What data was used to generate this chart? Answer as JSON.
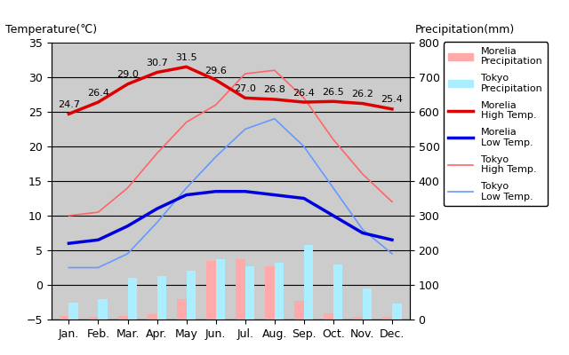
{
  "months": [
    "Jan.",
    "Feb.",
    "Mar.",
    "Apr.",
    "May",
    "Jun.",
    "Jul.",
    "Aug.",
    "Sep.",
    "Oct.",
    "Nov.",
    "Dec."
  ],
  "morelia_high": [
    24.7,
    26.4,
    29.0,
    30.7,
    31.5,
    29.6,
    27.0,
    26.8,
    26.4,
    26.5,
    26.2,
    25.4
  ],
  "morelia_low": [
    6.0,
    6.5,
    8.5,
    11.0,
    13.0,
    13.5,
    13.5,
    13.0,
    12.5,
    10.0,
    7.5,
    6.5
  ],
  "tokyo_high": [
    10.0,
    10.5,
    14.0,
    19.0,
    23.5,
    26.0,
    30.5,
    31.0,
    27.0,
    21.0,
    16.0,
    12.0
  ],
  "tokyo_low": [
    2.5,
    2.5,
    4.5,
    9.0,
    14.0,
    18.5,
    22.5,
    24.0,
    20.0,
    14.0,
    8.0,
    4.5
  ],
  "morelia_precip": [
    10,
    8,
    10,
    15,
    60,
    170,
    175,
    155,
    55,
    18,
    8,
    8
  ],
  "tokyo_precip": [
    50,
    60,
    120,
    125,
    140,
    175,
    155,
    165,
    215,
    160,
    90,
    45
  ],
  "ylim_temp": [
    -5,
    35
  ],
  "ylim_precip": [
    0,
    800
  ],
  "bg_color": "#cccccc",
  "morelia_high_color": "#dd0000",
  "morelia_low_color": "#0000dd",
  "tokyo_high_color": "#ff6666",
  "tokyo_low_color": "#6699ff",
  "morelia_precip_color": "#ffaaaa",
  "tokyo_precip_color": "#aaeeff",
  "title_left": "Temperature(℃)",
  "title_right": "Precipitation(mm)",
  "label_morelia_precip": "Morelia\nPrecipitation",
  "label_tokyo_precip": "Tokyo\nPrecipitation",
  "label_morelia_high": "Morelia\nHigh Temp.",
  "label_morelia_low": "Morelia\nLow Temp.",
  "label_tokyo_high": "Tokyo\nHigh Temp.",
  "label_tokyo_low": "Tokyo\nLow Temp.",
  "yticks_temp": [
    -5,
    0,
    5,
    10,
    15,
    20,
    25,
    30,
    35
  ],
  "yticks_precip": [
    0,
    100,
    200,
    300,
    400,
    500,
    600,
    700,
    800
  ],
  "annot_fontsize": 8,
  "tick_fontsize": 9,
  "legend_fontsize": 8
}
